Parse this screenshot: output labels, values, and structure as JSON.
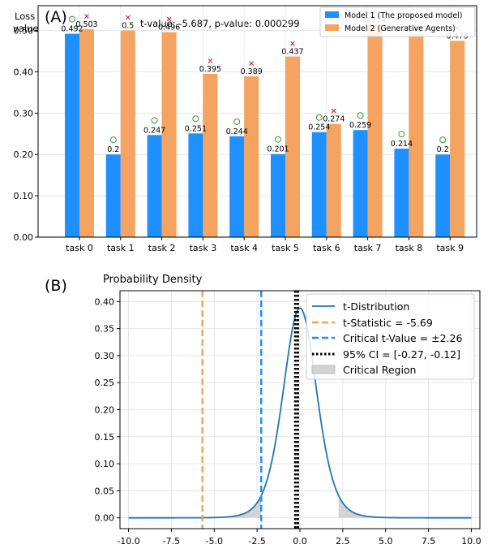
{
  "chart_data": [
    {
      "type": "bar",
      "panel_label": "(A)",
      "title": "t-value: -5.687, p-value: 0.000299",
      "ylabel": "Loss value",
      "xlabel": "",
      "categories": [
        "task 0",
        "task 1",
        "task 2",
        "task 3",
        "task 4",
        "task 5",
        "task 6",
        "task 7",
        "task 8",
        "task 9"
      ],
      "ylim": [
        0,
        0.56
      ],
      "yticks": [
        "0.00",
        "0.10",
        "0.20",
        "0.30",
        "0.40",
        "0.50"
      ],
      "ytick_values": [
        0,
        0.1,
        0.2,
        0.3,
        0.4,
        0.5
      ],
      "grid": true,
      "legend": "top-right",
      "series": [
        {
          "name": "Model 1 (The proposed model)",
          "color": "#1e90ff",
          "values": [
            0.492,
            0.2,
            0.247,
            0.251,
            0.244,
            0.201,
            0.254,
            0.259,
            0.214,
            0.2
          ],
          "labels": [
            "0.492",
            "0.2",
            "0.247",
            "0.251",
            "0.244",
            "0.201",
            "0.254",
            "0.259",
            "0.214",
            "0.2"
          ]
        },
        {
          "name": "Model 2 (Generative Agents)",
          "color": "#f4a460",
          "values": [
            0.503,
            0.5,
            0.496,
            0.395,
            0.389,
            0.437,
            0.274,
            0.514,
            0.491,
            0.475
          ],
          "labels": [
            "0.503",
            "0.5",
            "0.496",
            "0.395",
            "0.389",
            "0.437",
            "0.274",
            "0.514",
            "0.491",
            "0.475"
          ]
        }
      ],
      "annotations": {
        "winner_circle_color": "#2ca02c",
        "loser_x_color": "#d62728",
        "note": "green circle above lower bar, red x above higher bar"
      }
    },
    {
      "type": "line",
      "panel_label": "(B)",
      "ylabel": "Probability Density",
      "xlabel": "",
      "xlim": [
        -10.5,
        10.5
      ],
      "ylim": [
        -0.02,
        0.42
      ],
      "xticks": [
        "-10.0",
        "-7.5",
        "-5.0",
        "-2.5",
        "0.0",
        "2.5",
        "5.0",
        "7.5",
        "10.0"
      ],
      "xtick_values": [
        -10,
        -7.5,
        -5,
        -2.5,
        0,
        2.5,
        5,
        7.5,
        10
      ],
      "yticks": [
        "0.00",
        "0.05",
        "0.10",
        "0.15",
        "0.20",
        "0.25",
        "0.30",
        "0.35",
        "0.40"
      ],
      "ytick_values": [
        0,
        0.05,
        0.1,
        0.15,
        0.2,
        0.25,
        0.3,
        0.35,
        0.4
      ],
      "grid": true,
      "legend": "top-right",
      "distribution": {
        "df": 9,
        "x_range": [
          -10,
          10
        ],
        "color": "#1f77b4"
      },
      "t_statistic": -5.69,
      "critical_value": 2.26,
      "ci": [
        -0.27,
        -0.12
      ],
      "colors": {
        "t_stat": "#f4a460",
        "critical": "#1e90ff",
        "ci": "#000000",
        "region": "#d3d3d3"
      },
      "legend_entries": [
        "t-Distribution",
        "t-Statistic = -5.69",
        "Critical t-Value = ±2.26",
        "95% CI = [-0.27, -0.12]",
        "Critical Region"
      ]
    }
  ]
}
